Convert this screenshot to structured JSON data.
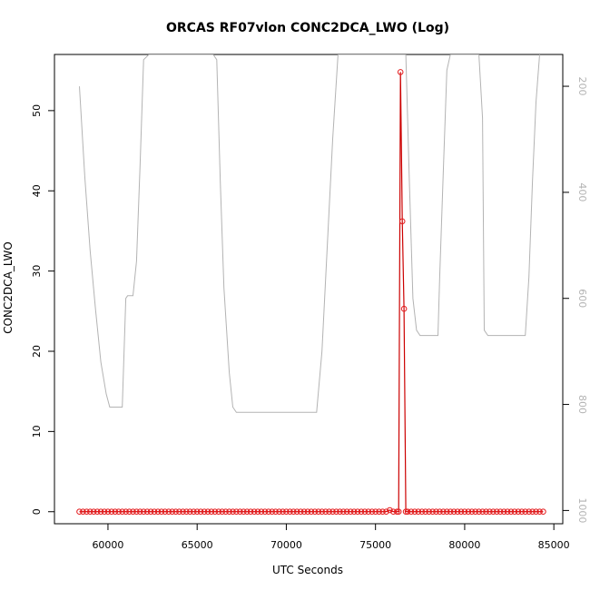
{
  "chart_data": {
    "type": "line",
    "title": "ORCAS RF07vlon CONC2DCA_LWO (Log)",
    "xlabel": "UTC Seconds",
    "ylabel": "CONC2DCA_LWO",
    "xlim": [
      57000,
      85500
    ],
    "ylim": [
      -1.5,
      57
    ],
    "x_ticks": [
      60000,
      65000,
      70000,
      75000,
      80000,
      85000
    ],
    "y_ticks": [
      0,
      10,
      20,
      30,
      40,
      50
    ],
    "y2_ticks": [
      200,
      400,
      600,
      800,
      1000
    ],
    "y2_lim": [
      1025,
      140
    ],
    "grid": false,
    "legend": "none",
    "colors": {
      "primary_series": "#e41a1c",
      "primary_line": "#cc0000",
      "secondary_series": "#b3b3b3"
    },
    "series": [
      {
        "axis": "left",
        "style": "points+line",
        "x": [
          58400,
          58600,
          58800,
          59000,
          59200,
          59400,
          59600,
          59800,
          60000,
          60200,
          60400,
          60600,
          60800,
          61000,
          61200,
          61400,
          61600,
          61800,
          62000,
          62200,
          62400,
          62600,
          62800,
          63000,
          63200,
          63400,
          63600,
          63800,
          64000,
          64200,
          64400,
          64600,
          64800,
          65000,
          65200,
          65400,
          65600,
          65800,
          66000,
          66200,
          66400,
          66600,
          66800,
          67000,
          67200,
          67400,
          67600,
          67800,
          68000,
          68200,
          68400,
          68600,
          68800,
          69000,
          69200,
          69400,
          69600,
          69800,
          70000,
          70200,
          70400,
          70600,
          70800,
          71000,
          71200,
          71400,
          71600,
          71800,
          72000,
          72200,
          72400,
          72600,
          72800,
          73000,
          73200,
          73400,
          73600,
          73800,
          74000,
          74200,
          74400,
          74600,
          74800,
          75000,
          75200,
          75400,
          75600,
          75800,
          76000,
          76200,
          76300,
          76400,
          76500,
          76600,
          76700,
          76800,
          77000,
          77200,
          77400,
          77600,
          77800,
          78000,
          78200,
          78400,
          78600,
          78800,
          79000,
          79200,
          79400,
          79600,
          79800,
          80000,
          80200,
          80400,
          80600,
          80800,
          81000,
          81200,
          81400,
          81600,
          81800,
          82000,
          82200,
          82400,
          82600,
          82800,
          83000,
          83200,
          83400,
          83600,
          83800,
          84000,
          84200,
          84400
        ],
        "y": [
          0,
          0,
          0,
          0,
          0,
          0,
          0,
          0,
          0,
          0,
          0,
          0,
          0,
          0,
          0,
          0,
          0,
          0,
          0,
          0,
          0,
          0,
          0,
          0,
          0,
          0,
          0,
          0,
          0,
          0,
          0,
          0,
          0,
          0,
          0,
          0,
          0,
          0,
          0,
          0,
          0,
          0,
          0,
          0,
          0,
          0,
          0,
          0,
          0,
          0,
          0,
          0,
          0,
          0,
          0,
          0,
          0,
          0,
          0,
          0,
          0,
          0,
          0,
          0,
          0,
          0,
          0,
          0,
          0,
          0,
          0,
          0,
          0,
          0,
          0,
          0,
          0,
          0,
          0,
          0,
          0,
          0,
          0,
          0,
          0,
          0,
          0,
          0.2,
          0,
          0,
          0,
          54.8,
          36.2,
          25.3,
          0,
          0,
          0,
          0,
          0,
          0,
          0,
          0,
          0,
          0,
          0,
          0,
          0,
          0,
          0,
          0,
          0,
          0,
          0,
          0,
          0,
          0,
          0,
          0,
          0,
          0,
          0,
          0,
          0,
          0,
          0,
          0,
          0,
          0,
          0,
          0,
          0,
          0,
          0,
          0
        ]
      },
      {
        "axis": "right",
        "style": "line",
        "x": [
          58400,
          58700,
          59000,
          59300,
          59600,
          59900,
          60100,
          60300,
          60500,
          60800,
          61000,
          61100,
          61200,
          61300,
          61400,
          61600,
          61800,
          62000,
          62300,
          62500,
          62800,
          63200,
          63600,
          64000,
          64400,
          64800,
          65200,
          65500,
          65700,
          65900,
          66100,
          66300,
          66500,
          66800,
          67000,
          67200,
          67500,
          68000,
          69000,
          70000,
          71000,
          71700,
          72000,
          72300,
          72600,
          72900,
          73200,
          73500,
          73800,
          74100,
          74400,
          74800,
          75200,
          75600,
          75900,
          76200,
          76500,
          76700,
          76900,
          77100,
          77300,
          77500,
          77700,
          77900,
          78100,
          78300,
          78500,
          78600,
          78800,
          79000,
          79200,
          79500,
          79800,
          80000,
          80200,
          80400,
          80600,
          80800,
          81000,
          81100,
          81300,
          81600,
          82000,
          82500,
          83000,
          83200,
          83400,
          83600,
          83800,
          84000,
          84200
        ],
        "y": [
          200,
          370,
          510,
          620,
          720,
          780,
          805,
          805,
          805,
          805,
          600,
          595,
          595,
          595,
          595,
          530,
          350,
          150,
          140,
          140,
          140,
          140,
          140,
          140,
          140,
          140,
          140,
          140,
          140,
          140,
          150,
          380,
          580,
          740,
          805,
          815,
          815,
          815,
          815,
          815,
          815,
          815,
          700,
          500,
          300,
          140,
          140,
          140,
          140,
          140,
          140,
          140,
          140,
          140,
          140,
          140,
          140,
          140,
          380,
          600,
          660,
          670,
          670,
          670,
          670,
          670,
          670,
          560,
          360,
          170,
          140,
          140,
          140,
          140,
          140,
          140,
          140,
          140,
          260,
          660,
          670,
          670,
          670,
          670,
          670,
          670,
          670,
          560,
          380,
          230,
          140
        ]
      }
    ]
  }
}
